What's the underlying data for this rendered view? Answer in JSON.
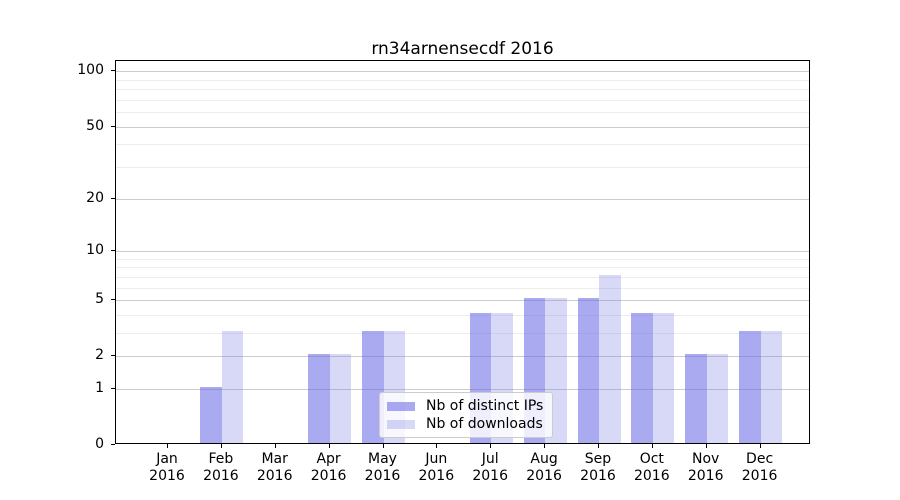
{
  "chart_data": {
    "type": "bar",
    "title": "rn34arnensecdf 2016",
    "categories": [
      "Jan",
      "Feb",
      "Mar",
      "Apr",
      "May",
      "Jun",
      "Jul",
      "Aug",
      "Sep",
      "Oct",
      "Nov",
      "Dec"
    ],
    "category_year": "2016",
    "series": [
      {
        "name": "Nb of distinct IPs",
        "color": "#6464e6",
        "alpha": 0.55,
        "values": [
          0,
          1,
          0,
          2,
          3,
          0,
          4,
          5,
          5,
          4,
          2,
          3
        ]
      },
      {
        "name": "Nb of downloads",
        "color": "#7d7de4",
        "alpha": 0.3,
        "values": [
          0,
          3,
          0,
          2,
          3,
          0,
          4,
          5,
          7,
          4,
          2,
          3
        ]
      }
    ],
    "yscale": "log1p",
    "ylim": [
      0,
      115
    ],
    "y_major_ticks": [
      0,
      1,
      2,
      5,
      10,
      20,
      50,
      100
    ],
    "y_minor_ticks": [
      3,
      4,
      6,
      7,
      8,
      9,
      30,
      40,
      60,
      70,
      80,
      90
    ],
    "grid": true,
    "legend_position": "lower center",
    "colors": {
      "major_grid": "#cccccc",
      "minor_grid": "#ededed",
      "spine": "#000000",
      "background": "#ffffff"
    }
  }
}
